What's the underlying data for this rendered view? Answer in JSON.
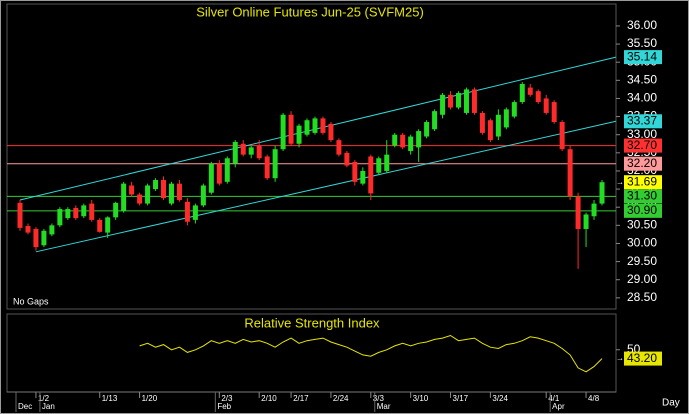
{
  "chart_data": [
    {
      "type": "candlestick",
      "title": "Silver Online Futures Jun-25 (SVFM25)",
      "footnote": "No Gaps",
      "x_unit": "Day",
      "up_color": "#22dd22",
      "down_color": "#ff2a2a",
      "categories": [
        null,
        null,
        "1/2",
        null,
        null,
        null,
        null,
        null,
        null,
        null,
        "1/13",
        null,
        null,
        null,
        null,
        "1/20",
        null,
        null,
        null,
        null,
        null,
        null,
        null,
        null,
        null,
        "2/3",
        null,
        null,
        null,
        null,
        "2/10",
        null,
        null,
        null,
        "2/17",
        null,
        null,
        null,
        null,
        "2/24",
        null,
        null,
        null,
        null,
        "3/3",
        null,
        null,
        null,
        null,
        "3/10",
        null,
        null,
        null,
        null,
        "3/17",
        null,
        null,
        null,
        null,
        "3/24",
        null,
        null,
        null,
        null,
        null,
        null,
        "4/1",
        null,
        null,
        null,
        null,
        "4/8",
        null,
        null
      ],
      "months": [
        "Dec",
        null,
        null,
        "Jan",
        null,
        null,
        null,
        null,
        null,
        null,
        null,
        null,
        null,
        null,
        null,
        null,
        null,
        null,
        null,
        null,
        null,
        null,
        null,
        null,
        null,
        "Feb",
        null,
        null,
        null,
        null,
        null,
        null,
        null,
        null,
        null,
        null,
        null,
        null,
        null,
        null,
        null,
        null,
        null,
        null,
        null,
        "Mar",
        null,
        null,
        null,
        null,
        null,
        null,
        null,
        null,
        null,
        null,
        null,
        null,
        null,
        null,
        null,
        null,
        null,
        null,
        null,
        null,
        null,
        "Apr",
        null,
        null,
        null,
        null,
        null,
        null
      ],
      "candles": [
        [
          31.12,
          31.2,
          30.35,
          30.43
        ],
        [
          30.48,
          30.55,
          30.25,
          30.3
        ],
        [
          30.4,
          30.45,
          29.8,
          29.9
        ],
        [
          29.95,
          30.4,
          29.9,
          30.35
        ],
        [
          30.25,
          30.55,
          30.2,
          30.5
        ],
        [
          30.5,
          31.0,
          30.45,
          30.95
        ],
        [
          30.7,
          31.0,
          30.65,
          30.95
        ],
        [
          30.98,
          31.05,
          30.65,
          30.7
        ],
        [
          30.75,
          31.1,
          30.7,
          31.05
        ],
        [
          31.1,
          31.2,
          30.6,
          30.65
        ],
        [
          30.65,
          30.7,
          30.3,
          30.32
        ],
        [
          30.3,
          30.75,
          30.15,
          30.72
        ],
        [
          30.72,
          31.15,
          30.65,
          31.12
        ],
        [
          30.9,
          31.7,
          30.85,
          31.65
        ],
        [
          31.6,
          31.7,
          31.3,
          31.35
        ],
        [
          31.35,
          31.4,
          31.05,
          31.1
        ],
        [
          31.1,
          31.65,
          31.05,
          31.6
        ],
        [
          31.5,
          31.8,
          31.45,
          31.75
        ],
        [
          31.75,
          31.85,
          31.2,
          31.25
        ],
        [
          31.1,
          31.7,
          31.05,
          31.65
        ],
        [
          31.65,
          31.75,
          31.15,
          31.2
        ],
        [
          31.15,
          31.25,
          30.5,
          30.6
        ],
        [
          30.65,
          31.1,
          30.55,
          31.05
        ],
        [
          31.05,
          31.65,
          31.0,
          31.6
        ],
        [
          31.4,
          32.25,
          31.35,
          32.2
        ],
        [
          32.2,
          32.3,
          31.6,
          31.65
        ],
        [
          31.7,
          32.4,
          31.65,
          32.35
        ],
        [
          32.2,
          32.85,
          32.1,
          32.8
        ],
        [
          32.75,
          32.85,
          32.4,
          32.45
        ],
        [
          32.45,
          32.7,
          32.35,
          32.65
        ],
        [
          32.7,
          32.85,
          32.3,
          32.35
        ],
        [
          32.4,
          32.45,
          31.75,
          31.8
        ],
        [
          31.8,
          32.7,
          31.7,
          32.6
        ],
        [
          32.6,
          33.6,
          32.55,
          33.55
        ],
        [
          33.55,
          33.65,
          32.7,
          32.75
        ],
        [
          32.75,
          33.3,
          32.65,
          33.25
        ],
        [
          33.0,
          33.45,
          32.95,
          33.4
        ],
        [
          33.05,
          33.5,
          33.0,
          33.45
        ],
        [
          33.45,
          33.5,
          33.0,
          33.05
        ],
        [
          33.3,
          33.35,
          32.8,
          32.85
        ],
        [
          32.85,
          32.9,
          32.4,
          32.45
        ],
        [
          32.5,
          32.55,
          32.1,
          32.15
        ],
        [
          32.25,
          32.3,
          31.6,
          31.7
        ],
        [
          31.65,
          32.1,
          31.6,
          32.0
        ],
        [
          32.4,
          32.45,
          31.2,
          31.38
        ],
        [
          31.95,
          32.4,
          31.9,
          32.35
        ],
        [
          32.0,
          32.85,
          31.95,
          32.45
        ],
        [
          32.7,
          33.05,
          32.65,
          33.0
        ],
        [
          33.0,
          33.05,
          32.6,
          32.65
        ],
        [
          32.55,
          33.0,
          32.45,
          32.95
        ],
        [
          32.65,
          33.15,
          32.25,
          33.1
        ],
        [
          32.95,
          33.4,
          32.9,
          33.35
        ],
        [
          33.15,
          33.7,
          33.1,
          33.65
        ],
        [
          33.55,
          34.15,
          33.45,
          34.1
        ],
        [
          34.1,
          34.2,
          33.7,
          33.75
        ],
        [
          33.75,
          34.2,
          33.7,
          34.15
        ],
        [
          33.6,
          34.3,
          33.55,
          34.25
        ],
        [
          34.25,
          34.3,
          33.55,
          33.6
        ],
        [
          33.6,
          33.65,
          33.0,
          33.05
        ],
        [
          33.4,
          33.45,
          32.8,
          32.85
        ],
        [
          32.95,
          33.7,
          32.85,
          33.55
        ],
        [
          33.2,
          33.75,
          33.15,
          33.7
        ],
        [
          33.5,
          33.95,
          33.45,
          33.9
        ],
        [
          33.9,
          34.45,
          33.85,
          34.4
        ],
        [
          34.3,
          34.4,
          34.05,
          34.1
        ],
        [
          34.2,
          34.25,
          33.85,
          33.9
        ],
        [
          34.0,
          34.1,
          33.55,
          33.6
        ],
        [
          33.9,
          33.95,
          33.3,
          33.35
        ],
        [
          33.35,
          33.4,
          32.55,
          32.6
        ],
        [
          32.6,
          32.7,
          31.2,
          31.3
        ],
        [
          31.3,
          31.4,
          29.3,
          30.4
        ],
        [
          30.4,
          30.85,
          29.9,
          30.8
        ],
        [
          30.75,
          31.2,
          30.65,
          31.1
        ],
        [
          31.1,
          31.75,
          31.05,
          31.69
        ]
      ],
      "last_label": "31.69",
      "last_label_color": "#ffff00",
      "ylim": [
        28.22,
        36.55
      ],
      "yticks": [
        {
          "value": 28.5,
          "label": "28.50"
        },
        {
          "value": 29,
          "label": "29.00"
        },
        {
          "value": 29.5,
          "label": "29.50"
        },
        {
          "value": 30,
          "label": "30.00"
        },
        {
          "value": 30.5,
          "label": "30.50"
        },
        {
          "value": 31,
          "label": "31.00"
        },
        {
          "value": 31.5,
          "label": "31.50"
        },
        {
          "value": 32,
          "label": "32.00"
        },
        {
          "value": 32.5,
          "label": "32.50"
        },
        {
          "value": 33,
          "label": "33.00"
        },
        {
          "value": 33.5,
          "label": "33.50"
        },
        {
          "value": 34,
          "label": "34.00"
        },
        {
          "value": 34.5,
          "label": "34.50"
        },
        {
          "value": 35,
          "label": "35.00"
        },
        {
          "value": 35.5,
          "label": "35.50"
        },
        {
          "value": 36,
          "label": "36.00"
        }
      ],
      "channels": [
        {
          "start_index": 0,
          "start_value": 31.2,
          "end_value": 35.14,
          "label": "35.14",
          "color": "#33d6d6"
        },
        {
          "start_index": 2,
          "start_value": 29.77,
          "end_value": 33.37,
          "label": "33.37",
          "color": "#33d6d6"
        }
      ],
      "hlines": [
        {
          "value": 32.7,
          "label": "32.70",
          "color": "#ff3030"
        },
        {
          "value": 32.2,
          "label": "32.20",
          "color": "#ff9a9a"
        },
        {
          "value": 31.3,
          "label": "31.30",
          "color": "#33cc33"
        },
        {
          "value": 30.9,
          "label": "30.90",
          "color": "#33cc33"
        }
      ]
    },
    {
      "type": "line",
      "title": "Relative Strength Index",
      "color": "#e6e600",
      "values": [
        null,
        null,
        null,
        null,
        null,
        null,
        null,
        null,
        null,
        null,
        null,
        null,
        null,
        null,
        null,
        53,
        55,
        52,
        54,
        50,
        52,
        48,
        50,
        53,
        57,
        55,
        57,
        55,
        58,
        56,
        57,
        55,
        52,
        56,
        59,
        55,
        57,
        58,
        59,
        56,
        54,
        52,
        49,
        46,
        45,
        48,
        50,
        53,
        55,
        53,
        55,
        56,
        58,
        59,
        61,
        57,
        58,
        59,
        55,
        52,
        51,
        54,
        55,
        57,
        60,
        59,
        57,
        55,
        51,
        46,
        36,
        33,
        37,
        43.2
      ],
      "value_labels": [
        null,
        null,
        null,
        null,
        null,
        null,
        null,
        null,
        null,
        null,
        null,
        null,
        null,
        null,
        null,
        null,
        null,
        null,
        null,
        null,
        null,
        null,
        null,
        null,
        null,
        null,
        null,
        null,
        null,
        null,
        null,
        null,
        null,
        null,
        null,
        null,
        null,
        null,
        null,
        null,
        null,
        null,
        null,
        null,
        null,
        null,
        null,
        null,
        null,
        null,
        null,
        null,
        null,
        null,
        null,
        null,
        null,
        null,
        null,
        null,
        null,
        null,
        null,
        null,
        null,
        null,
        null,
        null,
        null,
        null,
        null,
        null,
        null,
        "43.20"
      ],
      "ylim": [
        19,
        76
      ],
      "yticks": [
        50
      ]
    }
  ]
}
